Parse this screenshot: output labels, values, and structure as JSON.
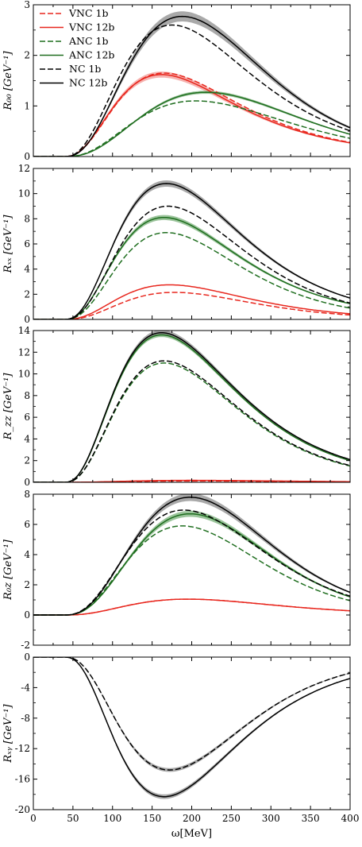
{
  "chart_data": [
    {
      "type": "line",
      "ylabel": "R₀₀ [GeV⁻¹]",
      "x_range": [
        0,
        400
      ],
      "ylim": [
        0,
        3
      ],
      "y_ticks": [
        "0",
        "1",
        "2",
        "3"
      ],
      "legend": {
        "placement": "top-left",
        "entries": [
          "VNC 1b",
          "VNC 12b",
          "ANC 1b",
          "ANC 12b",
          "NC 1b",
          "NC 12b"
        ]
      },
      "series": [
        {
          "name": "VNC 1b",
          "color": "#e8271e",
          "dash": "dashed",
          "peak_x": 165,
          "peak_y": 1.65,
          "tail_y": 0.28,
          "band": 0.0
        },
        {
          "name": "VNC 12b",
          "color": "#e8271e",
          "dash": "solid",
          "peak_x": 162,
          "peak_y": 1.62,
          "tail_y": 0.27,
          "band": 0.06
        },
        {
          "name": "ANC 1b",
          "color": "#1f6e1f",
          "dash": "dashed",
          "peak_x": 205,
          "peak_y": 1.1,
          "tail_y": 0.36,
          "band": 0.0
        },
        {
          "name": "ANC 12b",
          "color": "#1f6e1f",
          "dash": "solid",
          "peak_x": 218,
          "peak_y": 1.27,
          "tail_y": 0.44,
          "band": 0.03
        },
        {
          "name": "NC 1b",
          "color": "#000000",
          "dash": "dashed",
          "peak_x": 175,
          "peak_y": 2.6,
          "tail_y": 0.51,
          "band": 0.0
        },
        {
          "name": "NC 12b",
          "color": "#000000",
          "dash": "solid",
          "peak_x": 188,
          "peak_y": 2.77,
          "tail_y": 0.57,
          "band": 0.1
        }
      ]
    },
    {
      "type": "line",
      "ylabel": "Rₓₓ [GeV⁻¹]",
      "x_range": [
        0,
        400
      ],
      "ylim": [
        0,
        12
      ],
      "y_ticks": [
        "0",
        "2",
        "4",
        "6",
        "8",
        "10",
        "12"
      ],
      "series": [
        {
          "name": "VNC 1b",
          "color": "#e8271e",
          "dash": "dashed",
          "peak_x": 178,
          "peak_y": 2.15,
          "tail_y": 0.35,
          "band": 0.0
        },
        {
          "name": "VNC 12b",
          "color": "#e8271e",
          "dash": "solid",
          "peak_x": 172,
          "peak_y": 2.75,
          "tail_y": 0.45,
          "band": 0.0
        },
        {
          "name": "ANC 1b",
          "color": "#1f6e1f",
          "dash": "dashed",
          "peak_x": 168,
          "peak_y": 6.9,
          "tail_y": 0.9,
          "band": 0.0
        },
        {
          "name": "ANC 12b",
          "color": "#1f6e1f",
          "dash": "solid",
          "peak_x": 165,
          "peak_y": 8.1,
          "tail_y": 1.25,
          "band": 0.2
        },
        {
          "name": "NC 1b",
          "color": "#000000",
          "dash": "dashed",
          "peak_x": 170,
          "peak_y": 9.0,
          "tail_y": 1.3,
          "band": 0.0
        },
        {
          "name": "NC 12b",
          "color": "#000000",
          "dash": "solid",
          "peak_x": 168,
          "peak_y": 10.8,
          "tail_y": 1.7,
          "band": 0.25
        }
      ]
    },
    {
      "type": "line",
      "ylabel": "R_zz [GeV⁻¹]",
      "x_range": [
        0,
        400
      ],
      "ylim": [
        0,
        14
      ],
      "y_ticks": [
        "0",
        "2",
        "4",
        "6",
        "8",
        "10",
        "12",
        "14"
      ],
      "series": [
        {
          "name": "VNC 1b",
          "color": "#e8271e",
          "dash": "dashed",
          "peak_x": 200,
          "peak_y": 0.12,
          "tail_y": 0.05,
          "band": 0.0
        },
        {
          "name": "VNC 12b",
          "color": "#e8271e",
          "dash": "solid",
          "peak_x": 200,
          "peak_y": 0.18,
          "tail_y": 0.06,
          "band": 0.0
        },
        {
          "name": "ANC 1b",
          "color": "#1f6e1f",
          "dash": "dashed",
          "peak_x": 165,
          "peak_y": 11.0,
          "tail_y": 1.5,
          "band": 0.0
        },
        {
          "name": "ANC 12b",
          "color": "#1f6e1f",
          "dash": "solid",
          "peak_x": 162,
          "peak_y": 13.6,
          "tail_y": 2.0,
          "band": 0.2
        },
        {
          "name": "NC 1b",
          "color": "#000000",
          "dash": "dashed",
          "peak_x": 165,
          "peak_y": 11.2,
          "tail_y": 1.55,
          "band": 0.0
        },
        {
          "name": "NC 12b",
          "color": "#000000",
          "dash": "solid",
          "peak_x": 162,
          "peak_y": 13.8,
          "tail_y": 2.1,
          "band": 0.25
        }
      ]
    },
    {
      "type": "line",
      "ylabel": "R₀z [GeV⁻¹]",
      "x_range": [
        0,
        400
      ],
      "ylim": [
        -2,
        8
      ],
      "y_ticks": [
        "-2",
        "0",
        "2",
        "4",
        "6",
        "8"
      ],
      "series": [
        {
          "name": "VNC 1b",
          "color": "#e8271e",
          "dash": "dashed",
          "peak_x": 195,
          "peak_y": 1.05,
          "tail_y": 0.28,
          "band": 0.0
        },
        {
          "name": "VNC 12b",
          "color": "#e8271e",
          "dash": "solid",
          "peak_x": 195,
          "peak_y": 1.05,
          "tail_y": 0.28,
          "band": 0.0
        },
        {
          "name": "ANC 1b",
          "color": "#1f6e1f",
          "dash": "dashed",
          "peak_x": 188,
          "peak_y": 5.9,
          "tail_y": 0.95,
          "band": 0.0
        },
        {
          "name": "ANC 12b",
          "color": "#1f6e1f",
          "dash": "solid",
          "peak_x": 198,
          "peak_y": 6.7,
          "tail_y": 1.2,
          "band": 0.2
        },
        {
          "name": "NC 1b",
          "color": "#000000",
          "dash": "dashed",
          "peak_x": 190,
          "peak_y": 6.95,
          "tail_y": 1.25,
          "band": 0.0
        },
        {
          "name": "NC 12b",
          "color": "#000000",
          "dash": "solid",
          "peak_x": 198,
          "peak_y": 7.8,
          "tail_y": 1.5,
          "band": 0.25
        }
      ]
    },
    {
      "type": "line",
      "ylabel": "Rₓᵧ [GeV⁻¹]",
      "xlabel": "ω[MeV]",
      "x_range": [
        0,
        400
      ],
      "x_ticks": [
        "0",
        "50",
        "100",
        "150",
        "200",
        "250",
        "300",
        "350",
        "400"
      ],
      "ylim": [
        -20,
        0
      ],
      "y_ticks": [
        "0",
        "-4",
        "-8",
        "-12",
        "-16",
        "-20"
      ],
      "series": [
        {
          "name": "NC 1b",
          "color": "#000000",
          "dash": "dashed",
          "peak_x": 172,
          "peak_y": -14.8,
          "tail_y": -2.1,
          "band": 0.25
        },
        {
          "name": "NC 12b",
          "color": "#000000",
          "dash": "solid",
          "peak_x": 165,
          "peak_y": -18.3,
          "tail_y": -2.8,
          "band": 0.3
        }
      ]
    }
  ]
}
